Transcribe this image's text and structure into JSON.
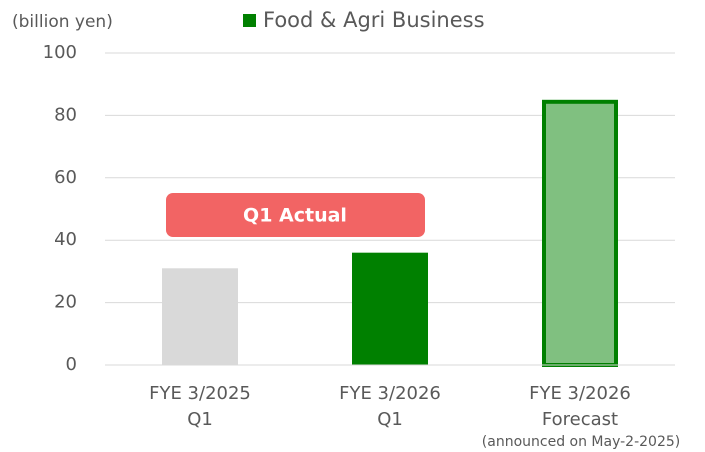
{
  "chart_data": {
    "type": "bar",
    "y_axis_label": "(billion yen)",
    "categories": [
      [
        "FYE 3/2025",
        "Q1"
      ],
      [
        "FYE 3/2026",
        "Q1"
      ],
      [
        "FYE 3/2026",
        "Forecast"
      ]
    ],
    "series": [
      {
        "name": "Food & Agri Business",
        "color": "#008000",
        "values": [
          31,
          36,
          85
        ]
      }
    ],
    "bar_colors": [
      "#d9d9d9",
      "#008000",
      "#80c080"
    ],
    "bar_outlines": [
      null,
      null,
      "#008000"
    ],
    "annotations": [
      "Q1 Actual",
      "(announced on May-2-2025)"
    ],
    "annotation_color": "#f26464",
    "ylim": [
      0,
      100
    ],
    "yticks": [
      0,
      20,
      40,
      60,
      80,
      100
    ],
    "grid": true
  }
}
